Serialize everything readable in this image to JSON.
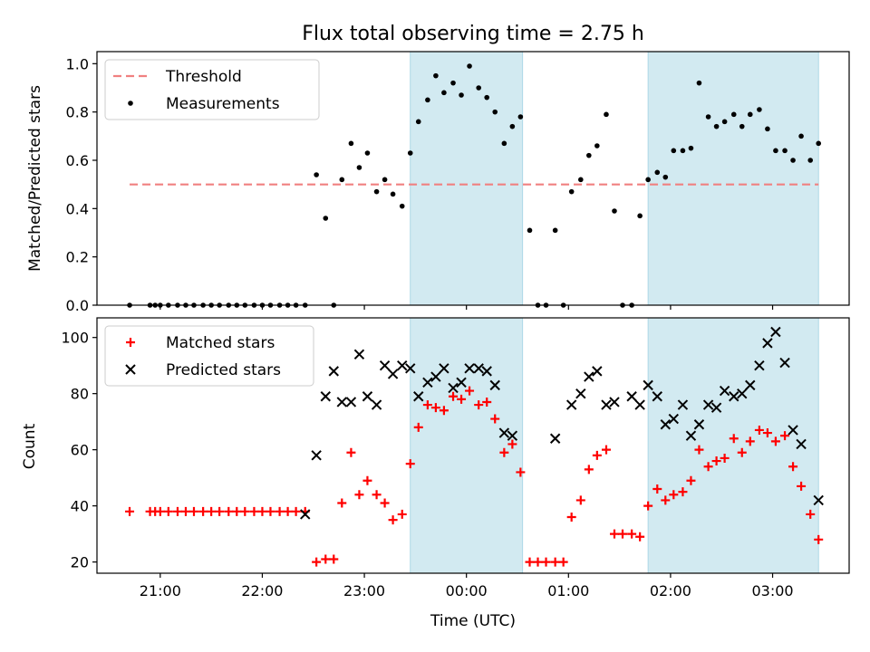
{
  "chart_data": {
    "type": "scatter",
    "title": "Flux total observing time = 2.75 h",
    "xlabel": "Time (UTC)",
    "x_ticks": [
      "21:00",
      "22:00",
      "23:00",
      "00:00",
      "01:00",
      "02:00",
      "03:00"
    ],
    "x_tick_hours": [
      21,
      22,
      23,
      24,
      25,
      26,
      27
    ],
    "xlim_hours": [
      20.38,
      27.75
    ],
    "shaded_intervals_hours": [
      [
        23.45,
        24.55
      ],
      [
        25.78,
        27.45
      ]
    ],
    "colors": {
      "threshold": "#f08080",
      "measurements": "#000000",
      "matched": "#ff0000",
      "predicted": "#000000",
      "shade": "#add8e6"
    },
    "panels": [
      {
        "ylabel": "Matched/Predicted stars",
        "ylim": [
          0,
          1.05
        ],
        "y_ticks": [
          "0.0",
          "0.2",
          "0.4",
          "0.6",
          "0.8",
          "1.0"
        ],
        "y_tick_values": [
          0,
          0.2,
          0.4,
          0.6,
          0.8,
          1.0
        ],
        "legend": [
          "Threshold",
          "Measurements"
        ],
        "threshold": {
          "name": "Threshold",
          "value": 0.5,
          "x_range_hours": [
            20.7,
            27.45
          ]
        },
        "series": [
          {
            "name": "Measurements",
            "marker": "dot",
            "points": [
              [
                20.7,
                0
              ],
              [
                20.9,
                0
              ],
              [
                20.95,
                0
              ],
              [
                21.0,
                0
              ],
              [
                21.08,
                0
              ],
              [
                21.17,
                0
              ],
              [
                21.25,
                0
              ],
              [
                21.33,
                0
              ],
              [
                21.42,
                0
              ],
              [
                21.5,
                0
              ],
              [
                21.58,
                0
              ],
              [
                21.67,
                0
              ],
              [
                21.75,
                0
              ],
              [
                21.83,
                0
              ],
              [
                21.92,
                0
              ],
              [
                22.0,
                0
              ],
              [
                22.08,
                0
              ],
              [
                22.17,
                0
              ],
              [
                22.25,
                0
              ],
              [
                22.33,
                0
              ],
              [
                22.42,
                0
              ],
              [
                22.53,
                0.54
              ],
              [
                22.62,
                0.36
              ],
              [
                22.7,
                0
              ],
              [
                22.78,
                0.52
              ],
              [
                22.87,
                0.67
              ],
              [
                22.95,
                0.57
              ],
              [
                23.03,
                0.63
              ],
              [
                23.12,
                0.47
              ],
              [
                23.2,
                0.52
              ],
              [
                23.28,
                0.46
              ],
              [
                23.37,
                0.41
              ],
              [
                23.45,
                0.63
              ],
              [
                23.53,
                0.76
              ],
              [
                23.62,
                0.85
              ],
              [
                23.7,
                0.95
              ],
              [
                23.78,
                0.88
              ],
              [
                23.87,
                0.92
              ],
              [
                23.95,
                0.87
              ],
              [
                24.03,
                0.99
              ],
              [
                24.12,
                0.9
              ],
              [
                24.2,
                0.86
              ],
              [
                24.28,
                0.8
              ],
              [
                24.37,
                0.67
              ],
              [
                24.45,
                0.74
              ],
              [
                24.53,
                0.78
              ],
              [
                24.62,
                0.31
              ],
              [
                24.7,
                0
              ],
              [
                24.78,
                0
              ],
              [
                24.87,
                0.31
              ],
              [
                24.95,
                0
              ],
              [
                25.03,
                0.47
              ],
              [
                25.12,
                0.52
              ],
              [
                25.2,
                0.62
              ],
              [
                25.28,
                0.66
              ],
              [
                25.37,
                0.79
              ],
              [
                25.45,
                0.39
              ],
              [
                25.53,
                0
              ],
              [
                25.62,
                0
              ],
              [
                25.7,
                0.37
              ],
              [
                25.78,
                0.52
              ],
              [
                25.87,
                0.55
              ],
              [
                25.95,
                0.53
              ],
              [
                26.03,
                0.64
              ],
              [
                26.12,
                0.64
              ],
              [
                26.2,
                0.65
              ],
              [
                26.28,
                0.92
              ],
              [
                26.37,
                0.78
              ],
              [
                26.45,
                0.74
              ],
              [
                26.53,
                0.76
              ],
              [
                26.62,
                0.79
              ],
              [
                26.7,
                0.74
              ],
              [
                26.78,
                0.79
              ],
              [
                26.87,
                0.81
              ],
              [
                26.95,
                0.73
              ],
              [
                27.03,
                0.64
              ],
              [
                27.12,
                0.64
              ],
              [
                27.2,
                0.6
              ],
              [
                27.28,
                0.7
              ],
              [
                27.37,
                0.6
              ],
              [
                27.45,
                0.67
              ]
            ]
          }
        ]
      },
      {
        "ylabel": "Count",
        "ylim": [
          16,
          107
        ],
        "y_ticks": [
          "20",
          "40",
          "60",
          "80",
          "100"
        ],
        "y_tick_values": [
          20,
          40,
          60,
          80,
          100
        ],
        "legend": [
          "Matched stars",
          "Predicted stars"
        ],
        "series": [
          {
            "name": "Matched stars",
            "marker": "plus",
            "points": [
              [
                20.7,
                38
              ],
              [
                20.9,
                38
              ],
              [
                20.95,
                38
              ],
              [
                21.0,
                38
              ],
              [
                21.08,
                38
              ],
              [
                21.17,
                38
              ],
              [
                21.25,
                38
              ],
              [
                21.33,
                38
              ],
              [
                21.42,
                38
              ],
              [
                21.5,
                38
              ],
              [
                21.58,
                38
              ],
              [
                21.67,
                38
              ],
              [
                21.75,
                38
              ],
              [
                21.83,
                38
              ],
              [
                21.92,
                38
              ],
              [
                22.0,
                38
              ],
              [
                22.08,
                38
              ],
              [
                22.17,
                38
              ],
              [
                22.25,
                38
              ],
              [
                22.33,
                38
              ],
              [
                22.42,
                38
              ],
              [
                22.53,
                20
              ],
              [
                22.62,
                21
              ],
              [
                22.7,
                21
              ],
              [
                22.78,
                41
              ],
              [
                22.87,
                59
              ],
              [
                22.95,
                44
              ],
              [
                23.03,
                49
              ],
              [
                23.12,
                44
              ],
              [
                23.2,
                41
              ],
              [
                23.28,
                35
              ],
              [
                23.37,
                37
              ],
              [
                23.45,
                55
              ],
              [
                23.53,
                68
              ],
              [
                23.62,
                76
              ],
              [
                23.7,
                75
              ],
              [
                23.78,
                74
              ],
              [
                23.87,
                79
              ],
              [
                23.95,
                78
              ],
              [
                24.03,
                81
              ],
              [
                24.12,
                76
              ],
              [
                24.2,
                77
              ],
              [
                24.28,
                71
              ],
              [
                24.37,
                59
              ],
              [
                24.45,
                62
              ],
              [
                24.53,
                52
              ],
              [
                24.62,
                20
              ],
              [
                24.7,
                20
              ],
              [
                24.78,
                20
              ],
              [
                24.87,
                20
              ],
              [
                24.95,
                20
              ],
              [
                25.03,
                36
              ],
              [
                25.12,
                42
              ],
              [
                25.2,
                53
              ],
              [
                25.28,
                58
              ],
              [
                25.37,
                60
              ],
              [
                25.45,
                30
              ],
              [
                25.53,
                30
              ],
              [
                25.62,
                30
              ],
              [
                25.7,
                29
              ],
              [
                25.78,
                40
              ],
              [
                25.87,
                46
              ],
              [
                25.95,
                42
              ],
              [
                26.03,
                44
              ],
              [
                26.12,
                45
              ],
              [
                26.2,
                49
              ],
              [
                26.28,
                60
              ],
              [
                26.37,
                54
              ],
              [
                26.45,
                56
              ],
              [
                26.53,
                57
              ],
              [
                26.62,
                64
              ],
              [
                26.7,
                59
              ],
              [
                26.78,
                63
              ],
              [
                26.87,
                67
              ],
              [
                26.95,
                66
              ],
              [
                27.03,
                63
              ],
              [
                27.12,
                65
              ],
              [
                27.2,
                54
              ],
              [
                27.28,
                47
              ],
              [
                27.37,
                37
              ],
              [
                27.45,
                28
              ]
            ]
          },
          {
            "name": "Predicted stars",
            "marker": "x",
            "points": [
              [
                22.42,
                37
              ],
              [
                22.53,
                58
              ],
              [
                22.62,
                79
              ],
              [
                22.7,
                88
              ],
              [
                22.78,
                77
              ],
              [
                22.87,
                77
              ],
              [
                22.95,
                94
              ],
              [
                23.03,
                79
              ],
              [
                23.12,
                76
              ],
              [
                23.2,
                90
              ],
              [
                23.28,
                87
              ],
              [
                23.37,
                90
              ],
              [
                23.45,
                89
              ],
              [
                23.53,
                79
              ],
              [
                23.62,
                84
              ],
              [
                23.7,
                86
              ],
              [
                23.78,
                89
              ],
              [
                23.87,
                82
              ],
              [
                23.95,
                84
              ],
              [
                24.03,
                89
              ],
              [
                24.12,
                89
              ],
              [
                24.2,
                88
              ],
              [
                24.28,
                83
              ],
              [
                24.37,
                66
              ],
              [
                24.45,
                65
              ],
              [
                24.87,
                64
              ],
              [
                25.03,
                76
              ],
              [
                25.12,
                80
              ],
              [
                25.2,
                86
              ],
              [
                25.28,
                88
              ],
              [
                25.37,
                76
              ],
              [
                25.45,
                77
              ],
              [
                25.62,
                79
              ],
              [
                25.7,
                76
              ],
              [
                25.78,
                83
              ],
              [
                25.87,
                79
              ],
              [
                25.95,
                69
              ],
              [
                26.03,
                71
              ],
              [
                26.12,
                76
              ],
              [
                26.2,
                65
              ],
              [
                26.28,
                69
              ],
              [
                26.37,
                76
              ],
              [
                26.45,
                75
              ],
              [
                26.53,
                81
              ],
              [
                26.62,
                79
              ],
              [
                26.7,
                80
              ],
              [
                26.78,
                83
              ],
              [
                26.87,
                90
              ],
              [
                26.95,
                98
              ],
              [
                27.03,
                102
              ],
              [
                27.12,
                91
              ],
              [
                27.2,
                67
              ],
              [
                27.28,
                62
              ],
              [
                27.45,
                42
              ]
            ]
          }
        ]
      }
    ]
  }
}
